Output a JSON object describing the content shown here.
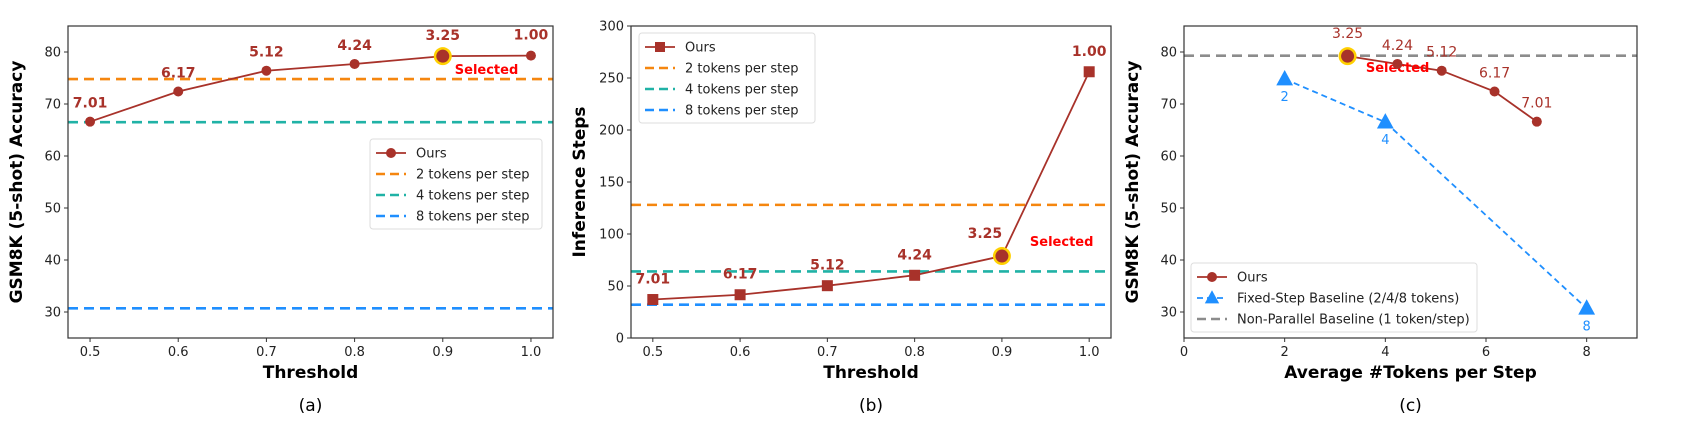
{
  "colors": {
    "ours": "#a8322a",
    "two": "#f5860f",
    "four": "#20b2a6",
    "eight": "#1f8fff",
    "nonpar": "#8c8c8c",
    "highlight": "#ffd000",
    "selected": "#ff0000"
  },
  "selected_label": "Selected",
  "chart_data": [
    {
      "type": "line",
      "caption": "(a)",
      "xlabel": "Threshold",
      "ylabel": "GSM8K (5-shot) Accuracy",
      "xlim": [
        0.475,
        1.025
      ],
      "ylim": [
        25,
        85
      ],
      "xticks": [
        "0.5",
        "0.6",
        "0.7",
        "0.8",
        "0.9",
        "1.0"
      ],
      "yticks": [
        "30",
        "40",
        "50",
        "60",
        "70",
        "80"
      ],
      "series": [
        {
          "name": "Ours",
          "x": [
            0.5,
            0.6,
            0.7,
            0.8,
            0.9,
            1.0
          ],
          "y": [
            66.6,
            72.4,
            76.4,
            77.7,
            79.2,
            79.3
          ],
          "labels": [
            "7.01",
            "6.17",
            "5.12",
            "4.24",
            "3.25",
            "1.00"
          ],
          "marker": "circle",
          "selected_index": 4
        }
      ],
      "hlines": [
        {
          "name": "2 tokens per step",
          "y": 74.8,
          "color": "two"
        },
        {
          "name": "4 tokens per step",
          "y": 66.5,
          "color": "four"
        },
        {
          "name": "8 tokens per step",
          "y": 30.7,
          "color": "eight"
        }
      ],
      "legend": [
        "Ours",
        "2 tokens per step",
        "4 tokens per step",
        "8 tokens per step"
      ],
      "legend_position": "center-right"
    },
    {
      "type": "line",
      "caption": "(b)",
      "xlabel": "Threshold",
      "ylabel": "Inference Steps",
      "xlim": [
        0.475,
        1.025
      ],
      "ylim": [
        0,
        300
      ],
      "xticks": [
        "0.5",
        "0.6",
        "0.7",
        "0.8",
        "0.9",
        "1.0"
      ],
      "yticks": [
        "0",
        "50",
        "100",
        "150",
        "200",
        "250",
        "300"
      ],
      "series": [
        {
          "name": "Ours",
          "x": [
            0.5,
            0.6,
            0.7,
            0.8,
            0.9,
            1.0
          ],
          "y": [
            37,
            41.6,
            50.3,
            60.3,
            78.8,
            256
          ],
          "labels": [
            "7.01",
            "6.17",
            "5.12",
            "4.24",
            "3.25",
            "1.00"
          ],
          "marker": "square",
          "selected_index": 4
        }
      ],
      "hlines": [
        {
          "name": "2 tokens per step",
          "y": 128,
          "color": "two"
        },
        {
          "name": "4 tokens per step",
          "y": 64,
          "color": "four"
        },
        {
          "name": "8 tokens per step",
          "y": 32,
          "color": "eight"
        }
      ],
      "legend": [
        "Ours",
        "2 tokens per step",
        "4 tokens per step",
        "8 tokens per step"
      ],
      "legend_position": "upper-left"
    },
    {
      "type": "line",
      "caption": "(c)",
      "xlabel": "Average #Tokens per Step",
      "ylabel": "GSM8K (5-shot) Accuracy",
      "xlim": [
        0,
        9
      ],
      "ylim": [
        25,
        85
      ],
      "xticks": [
        "0",
        "2",
        "4",
        "6",
        "8"
      ],
      "yticks": [
        "30",
        "40",
        "50",
        "60",
        "70",
        "80"
      ],
      "series": [
        {
          "name": "Ours",
          "x": [
            3.25,
            4.24,
            5.12,
            6.17,
            7.01
          ],
          "y": [
            79.2,
            77.7,
            76.4,
            72.4,
            66.6
          ],
          "labels": [
            "3.25",
            "4.24",
            "5.12",
            "6.17",
            "7.01"
          ],
          "marker": "circle",
          "selected_index": 0
        },
        {
          "name": "Fixed-Step Baseline (2/4/8 tokens)",
          "x": [
            2,
            4,
            8
          ],
          "y": [
            74.8,
            66.5,
            30.7
          ],
          "labels": [
            "2",
            "4",
            "8"
          ],
          "marker": "triangle"
        }
      ],
      "hlines": [
        {
          "name": "Non-Parallel Baseline (1 token/step)",
          "y": 79.3,
          "color": "nonpar"
        }
      ],
      "legend": [
        "Ours",
        "Fixed-Step Baseline (2/4/8 tokens)",
        "Non-Parallel Baseline (1 token/step)"
      ],
      "legend_position": "lower-left"
    }
  ]
}
